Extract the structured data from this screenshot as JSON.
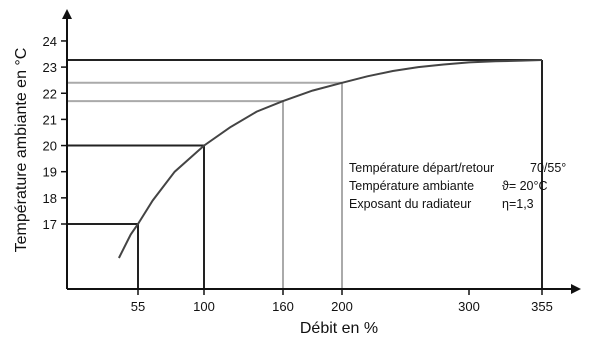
{
  "chart_data": {
    "type": "line",
    "xlabel": "Débit en %",
    "ylabel": "Température ambiante en °C",
    "x_ticks": [
      55,
      100,
      160,
      200,
      300,
      355
    ],
    "y_ticks": [
      17,
      18,
      19,
      20,
      21,
      22,
      23,
      24
    ],
    "xlim": [
      0,
      370
    ],
    "ylim": [
      15.2,
      24.8
    ],
    "series": [
      {
        "x": [
          42,
          50,
          55,
          65,
          80,
          100,
          120,
          140,
          160,
          180,
          200,
          220,
          240,
          260,
          280,
          300,
          320,
          340,
          355
        ],
        "y": [
          15.7,
          16.6,
          17.0,
          17.9,
          19.0,
          20.0,
          20.7,
          21.3,
          21.7,
          22.1,
          22.4,
          22.65,
          22.85,
          23.0,
          23.1,
          23.18,
          23.22,
          23.25,
          23.27
        ]
      }
    ],
    "reference_points": [
      {
        "x": 55,
        "y": 17.0,
        "color": "#222222"
      },
      {
        "x": 100,
        "y": 20.0,
        "color": "#222222"
      },
      {
        "x": 160,
        "y": 21.7,
        "color": "#aaaaaa"
      },
      {
        "x": 200,
        "y": 22.4,
        "color": "#aaaaaa"
      },
      {
        "x": 355,
        "y": 23.27,
        "color": "#222222"
      }
    ],
    "annotations": {
      "rows": [
        {
          "label": "Température départ/retour",
          "value": "70/55°"
        },
        {
          "label": "Température ambiante",
          "value": "ϑ= 20°C"
        },
        {
          "label": "Exposant du radiateur",
          "value": "η=1,3"
        }
      ]
    },
    "grid": false
  }
}
